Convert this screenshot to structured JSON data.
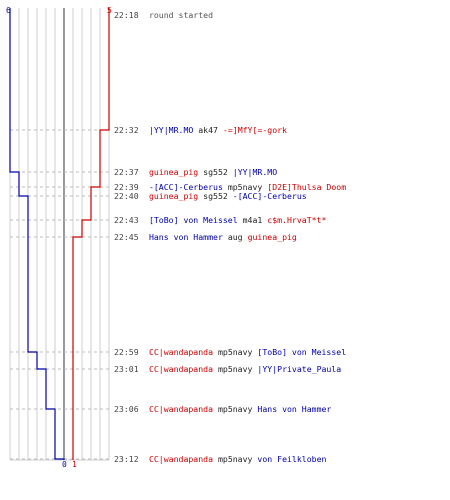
{
  "teams": {
    "blue": {
      "color": "#0000aa",
      "start_count": "6",
      "end_count": "0"
    },
    "red": {
      "color": "#cc0000",
      "start_count": "5",
      "end_count": "1"
    }
  },
  "events": [
    {
      "time": "22:18",
      "note": "round started"
    },
    {
      "time": "22:32",
      "killer": "|YY|MR.MO",
      "killer_team": "blue",
      "weapon": "ak47",
      "victim": "-=]MfY[=-gork",
      "victim_team": "red"
    },
    {
      "time": "22:37",
      "killer": "guinea_pig",
      "killer_team": "red",
      "weapon": "sg552",
      "victim": "|YY|MR.MO",
      "victim_team": "blue"
    },
    {
      "time": "22:39",
      "killer": "-[ACC]-Cerberus",
      "killer_team": "blue",
      "weapon": "mp5navy",
      "victim": "[D2E]Thulsa Doom",
      "victim_team": "red"
    },
    {
      "time": "22:40",
      "killer": "guinea_pig",
      "killer_team": "red",
      "weapon": "sg552",
      "victim": "-[ACC]-Cerberus",
      "victim_team": "blue"
    },
    {
      "time": "22:43",
      "killer": "[ToBo] von Meissel",
      "killer_team": "blue",
      "weapon": "m4a1",
      "victim": "c$m.HrvaT*t*",
      "victim_team": "red"
    },
    {
      "time": "22:45",
      "killer": "Hans von Hammer",
      "killer_team": "blue",
      "weapon": "aug",
      "victim": "guinea_pig",
      "victim_team": "red"
    },
    {
      "time": "22:59",
      "killer": "CC|wandapanda",
      "killer_team": "red",
      "weapon": "mp5navy",
      "victim": "[ToBo] von Meissel",
      "victim_team": "blue"
    },
    {
      "time": "23:01",
      "killer": "CC|wandapanda",
      "killer_team": "red",
      "weapon": "mp5navy",
      "victim": "|YY|Private_Paula",
      "victim_team": "blue"
    },
    {
      "time": "23:06",
      "killer": "CC|wandapanda",
      "killer_team": "red",
      "weapon": "mp5navy",
      "victim": "Hans von Hammer",
      "victim_team": "blue"
    },
    {
      "time": "23:12",
      "killer": "CC|wandapanda",
      "killer_team": "red",
      "weapon": "mp5navy",
      "victim": "von Feilkloben",
      "victim_team": "blue"
    }
  ]
}
